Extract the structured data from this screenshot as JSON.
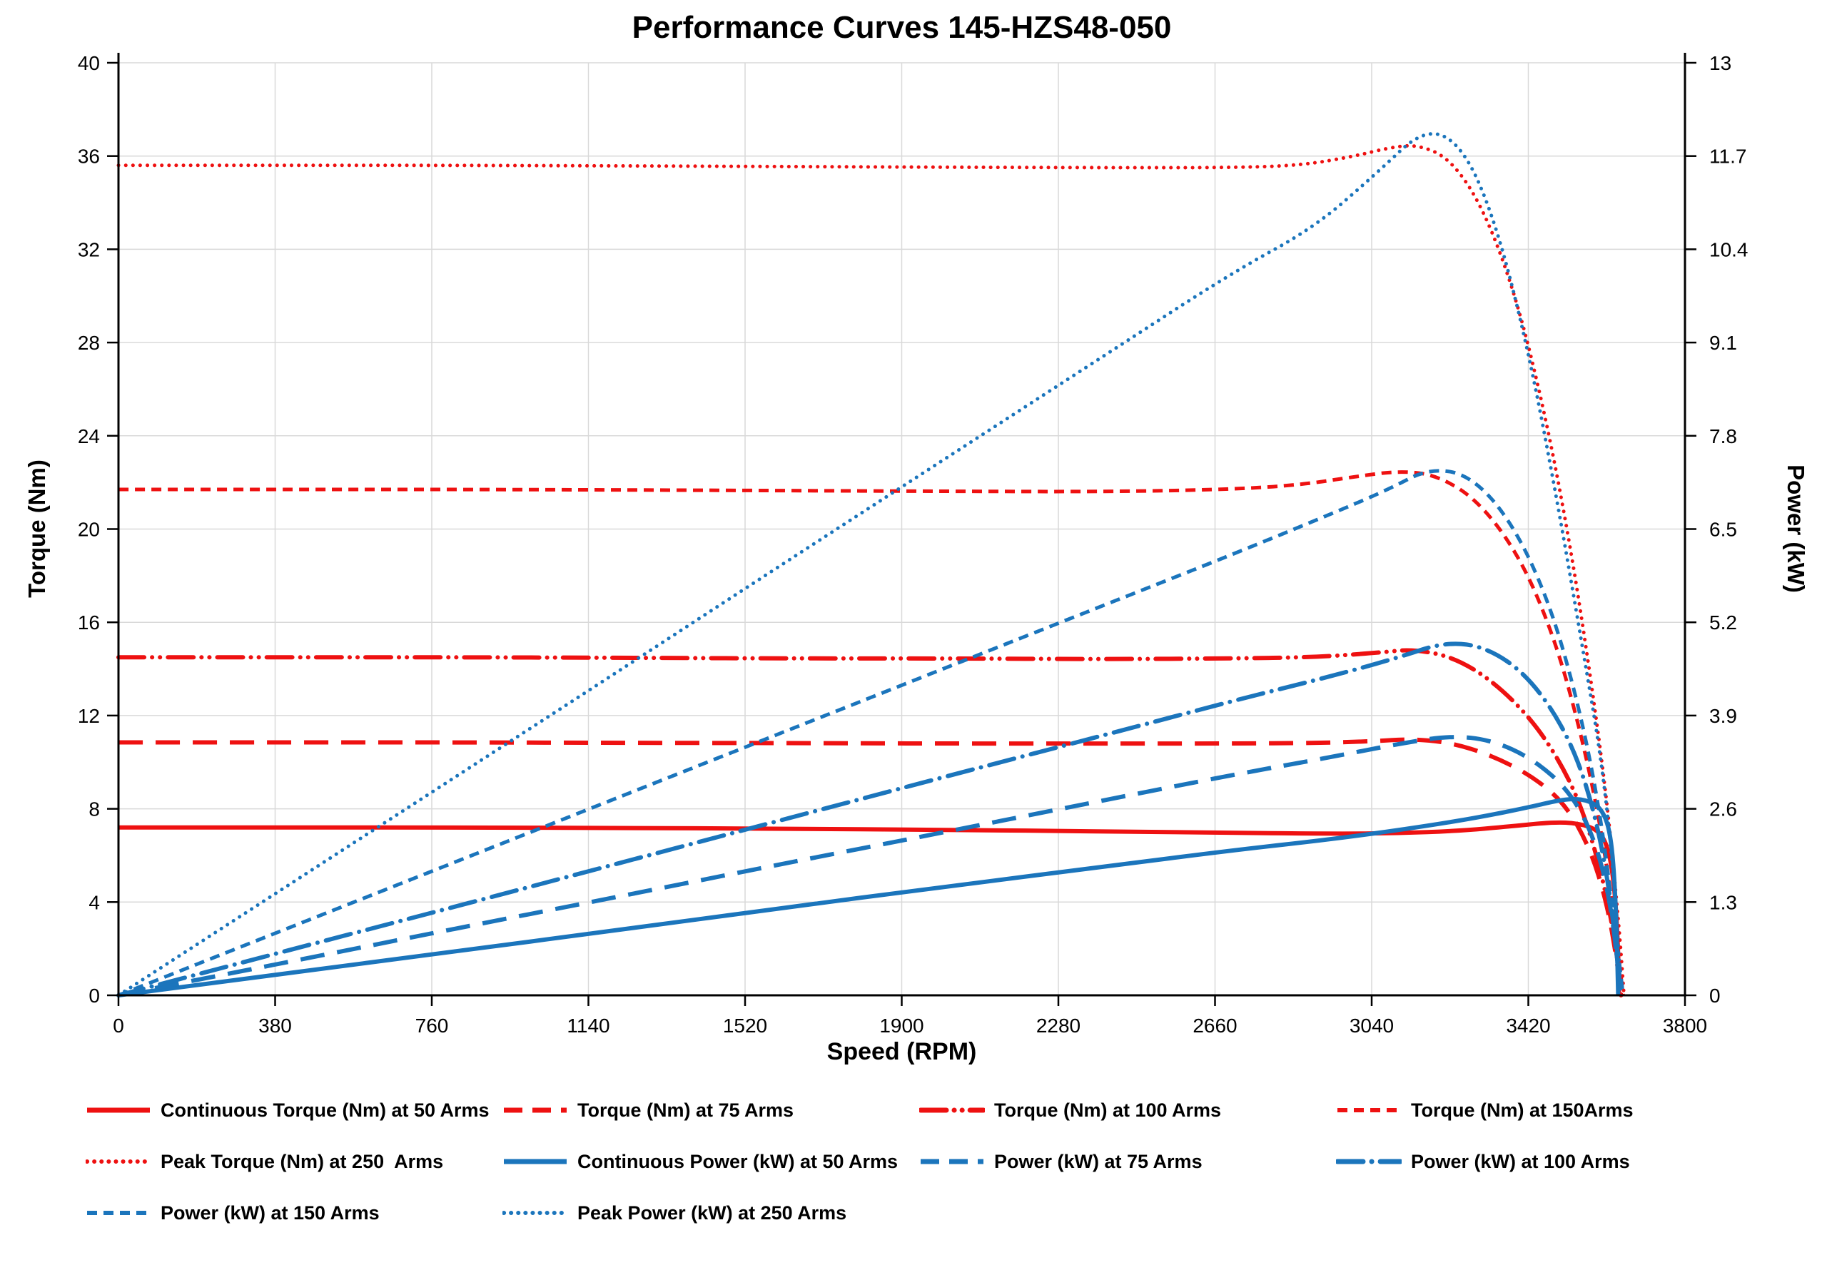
{
  "title": "Performance Curves 145-HZS48-050",
  "colors": {
    "red": "#ee1111",
    "blue": "#1b75bc",
    "grid": "#d9d9d9",
    "axis": "#000000",
    "text": "#000000"
  },
  "chart_data": {
    "type": "line",
    "title": "Performance Curves 145-HZS48-050",
    "xlabel": "Speed (RPM)",
    "ylabel_left": "Torque (Nm)",
    "ylabel_right": "Power (kW)",
    "xlim": [
      0,
      3800
    ],
    "ylim_left": [
      0,
      40
    ],
    "ylim_right": [
      0,
      13
    ],
    "x_ticks": [
      0,
      380,
      760,
      1140,
      1520,
      1900,
      2280,
      2660,
      3040,
      3420,
      3800
    ],
    "y_left_ticks": [
      0,
      4,
      8,
      12,
      16,
      20,
      24,
      28,
      32,
      36,
      40
    ],
    "y_right_ticks": [
      0,
      1.3,
      2.6,
      3.9,
      5.2,
      6.5,
      7.8,
      9.1,
      10.4,
      11.7,
      13
    ],
    "grid": true,
    "legend_position": "bottom",
    "series": [
      {
        "name": "Continuous Torque (Nm) at 50 Arms",
        "color": "red",
        "dash": "solid",
        "axis": "left",
        "points": [
          [
            0,
            7.2
          ],
          [
            400,
            7.2
          ],
          [
            800,
            7.2
          ],
          [
            1200,
            7.18
          ],
          [
            1600,
            7.15
          ],
          [
            2000,
            7.1
          ],
          [
            2400,
            7.03
          ],
          [
            2700,
            6.97
          ],
          [
            2950,
            6.93
          ],
          [
            3100,
            6.95
          ],
          [
            3250,
            7.05
          ],
          [
            3380,
            7.25
          ],
          [
            3480,
            7.43
          ],
          [
            3540,
            7.38
          ],
          [
            3590,
            7.1
          ],
          [
            3615,
            6.3
          ],
          [
            3630,
            4.5
          ],
          [
            3638,
            2
          ],
          [
            3640,
            0
          ]
        ]
      },
      {
        "name": "Torque (Nm) at 75 Arms",
        "color": "red",
        "dash": "long-dash",
        "axis": "left",
        "points": [
          [
            0,
            10.85
          ],
          [
            400,
            10.85
          ],
          [
            800,
            10.85
          ],
          [
            1200,
            10.83
          ],
          [
            1600,
            10.82
          ],
          [
            2000,
            10.8
          ],
          [
            2400,
            10.8
          ],
          [
            2700,
            10.8
          ],
          [
            2900,
            10.82
          ],
          [
            3050,
            10.9
          ],
          [
            3130,
            11.0
          ],
          [
            3230,
            10.85
          ],
          [
            3330,
            10.3
          ],
          [
            3430,
            9.4
          ],
          [
            3510,
            8.2
          ],
          [
            3570,
            6.3
          ],
          [
            3610,
            4.0
          ],
          [
            3635,
            1.5
          ],
          [
            3645,
            0
          ]
        ]
      },
      {
        "name": "Torque (Nm) at 100 Arms",
        "color": "red",
        "dash": "dash-dot-dot",
        "axis": "left",
        "points": [
          [
            0,
            14.5
          ],
          [
            400,
            14.5
          ],
          [
            800,
            14.5
          ],
          [
            1200,
            14.48
          ],
          [
            1600,
            14.45
          ],
          [
            2000,
            14.45
          ],
          [
            2400,
            14.42
          ],
          [
            2700,
            14.45
          ],
          [
            2900,
            14.5
          ],
          [
            3060,
            14.7
          ],
          [
            3140,
            14.85
          ],
          [
            3240,
            14.5
          ],
          [
            3340,
            13.4
          ],
          [
            3440,
            11.6
          ],
          [
            3520,
            9.3
          ],
          [
            3570,
            7.0
          ],
          [
            3610,
            4.3
          ],
          [
            3635,
            1.8
          ],
          [
            3645,
            0
          ]
        ]
      },
      {
        "name": "Torque (Nm) at 150Arms",
        "color": "red",
        "dash": "short-dash",
        "axis": "left",
        "points": [
          [
            0,
            21.7
          ],
          [
            400,
            21.7
          ],
          [
            800,
            21.7
          ],
          [
            1200,
            21.68
          ],
          [
            1600,
            21.65
          ],
          [
            2000,
            21.62
          ],
          [
            2400,
            21.6
          ],
          [
            2700,
            21.7
          ],
          [
            2870,
            21.9
          ],
          [
            3000,
            22.25
          ],
          [
            3110,
            22.5
          ],
          [
            3200,
            22.3
          ],
          [
            3300,
            21.2
          ],
          [
            3400,
            18.8
          ],
          [
            3480,
            15.5
          ],
          [
            3540,
            11.8
          ],
          [
            3590,
            7.8
          ],
          [
            3625,
            3.8
          ],
          [
            3650,
            0
          ]
        ]
      },
      {
        "name": "Peak Torque (Nm) at 250  Arms",
        "color": "red",
        "dash": "dot",
        "axis": "left",
        "points": [
          [
            0,
            35.6
          ],
          [
            400,
            35.6
          ],
          [
            800,
            35.6
          ],
          [
            1200,
            35.58
          ],
          [
            1600,
            35.55
          ],
          [
            2000,
            35.52
          ],
          [
            2400,
            35.5
          ],
          [
            2700,
            35.5
          ],
          [
            2870,
            35.6
          ],
          [
            3000,
            36.0
          ],
          [
            3080,
            36.35
          ],
          [
            3150,
            36.5
          ],
          [
            3230,
            35.9
          ],
          [
            3310,
            33.8
          ],
          [
            3390,
            30.0
          ],
          [
            3460,
            25.0
          ],
          [
            3520,
            19.5
          ],
          [
            3570,
            13.8
          ],
          [
            3610,
            8.5
          ],
          [
            3640,
            3.0
          ],
          [
            3652,
            0
          ]
        ]
      },
      {
        "name": "Continuous Power (kW) at 50 Arms",
        "color": "blue",
        "dash": "solid",
        "axis": "right",
        "points": [
          [
            0,
            0
          ],
          [
            400,
            0.3
          ],
          [
            800,
            0.6
          ],
          [
            1200,
            0.9
          ],
          [
            1600,
            1.21
          ],
          [
            2000,
            1.51
          ],
          [
            2400,
            1.8
          ],
          [
            2700,
            2.02
          ],
          [
            2950,
            2.18
          ],
          [
            3150,
            2.34
          ],
          [
            3300,
            2.48
          ],
          [
            3420,
            2.62
          ],
          [
            3510,
            2.74
          ],
          [
            3560,
            2.73
          ],
          [
            3600,
            2.6
          ],
          [
            3622,
            2.2
          ],
          [
            3633,
            1.2
          ],
          [
            3638,
            0
          ]
        ]
      },
      {
        "name": "Power (kW) at 75 Arms",
        "color": "blue",
        "dash": "long-dash",
        "axis": "right",
        "points": [
          [
            0,
            0
          ],
          [
            400,
            0.45
          ],
          [
            800,
            0.91
          ],
          [
            1200,
            1.36
          ],
          [
            1600,
            1.82
          ],
          [
            2000,
            2.27
          ],
          [
            2400,
            2.73
          ],
          [
            2700,
            3.07
          ],
          [
            2950,
            3.33
          ],
          [
            3100,
            3.5
          ],
          [
            3230,
            3.62
          ],
          [
            3330,
            3.56
          ],
          [
            3430,
            3.3
          ],
          [
            3520,
            2.85
          ],
          [
            3580,
            2.2
          ],
          [
            3620,
            1.3
          ],
          [
            3645,
            0
          ]
        ]
      },
      {
        "name": "Power (kW) at 100 Arms",
        "color": "blue",
        "dash": "dash-dot",
        "axis": "right",
        "points": [
          [
            0,
            0
          ],
          [
            400,
            0.61
          ],
          [
            800,
            1.21
          ],
          [
            1200,
            1.82
          ],
          [
            1600,
            2.43
          ],
          [
            2000,
            3.04
          ],
          [
            2400,
            3.64
          ],
          [
            2700,
            4.1
          ],
          [
            2950,
            4.46
          ],
          [
            3100,
            4.7
          ],
          [
            3220,
            4.93
          ],
          [
            3320,
            4.85
          ],
          [
            3420,
            4.45
          ],
          [
            3510,
            3.7
          ],
          [
            3570,
            2.8
          ],
          [
            3615,
            1.6
          ],
          [
            3645,
            0
          ]
        ]
      },
      {
        "name": "Power (kW) at 150 Arms",
        "color": "blue",
        "dash": "short-dash",
        "axis": "right",
        "points": [
          [
            0,
            0
          ],
          [
            400,
            0.91
          ],
          [
            800,
            1.82
          ],
          [
            1200,
            2.73
          ],
          [
            1600,
            3.64
          ],
          [
            2000,
            4.55
          ],
          [
            2400,
            5.46
          ],
          [
            2700,
            6.14
          ],
          [
            2950,
            6.73
          ],
          [
            3080,
            7.05
          ],
          [
            3180,
            7.35
          ],
          [
            3280,
            7.25
          ],
          [
            3380,
            6.6
          ],
          [
            3470,
            5.5
          ],
          [
            3540,
            4.1
          ],
          [
            3590,
            2.7
          ],
          [
            3625,
            1.2
          ],
          [
            3650,
            0
          ]
        ]
      },
      {
        "name": "Peak Power (kW) at 250 Arms",
        "color": "blue",
        "dash": "dot",
        "axis": "right",
        "points": [
          [
            0,
            0
          ],
          [
            400,
            1.49
          ],
          [
            800,
            2.98
          ],
          [
            1200,
            4.47
          ],
          [
            1600,
            5.97
          ],
          [
            2000,
            7.46
          ],
          [
            2400,
            8.95
          ],
          [
            2700,
            10.07
          ],
          [
            2900,
            10.7
          ],
          [
            3050,
            11.45
          ],
          [
            3170,
            12.1
          ],
          [
            3260,
            11.85
          ],
          [
            3340,
            10.8
          ],
          [
            3420,
            9.0
          ],
          [
            3490,
            6.9
          ],
          [
            3550,
            4.9
          ],
          [
            3600,
            3.2
          ],
          [
            3630,
            1.5
          ],
          [
            3645,
            0
          ]
        ]
      }
    ]
  }
}
